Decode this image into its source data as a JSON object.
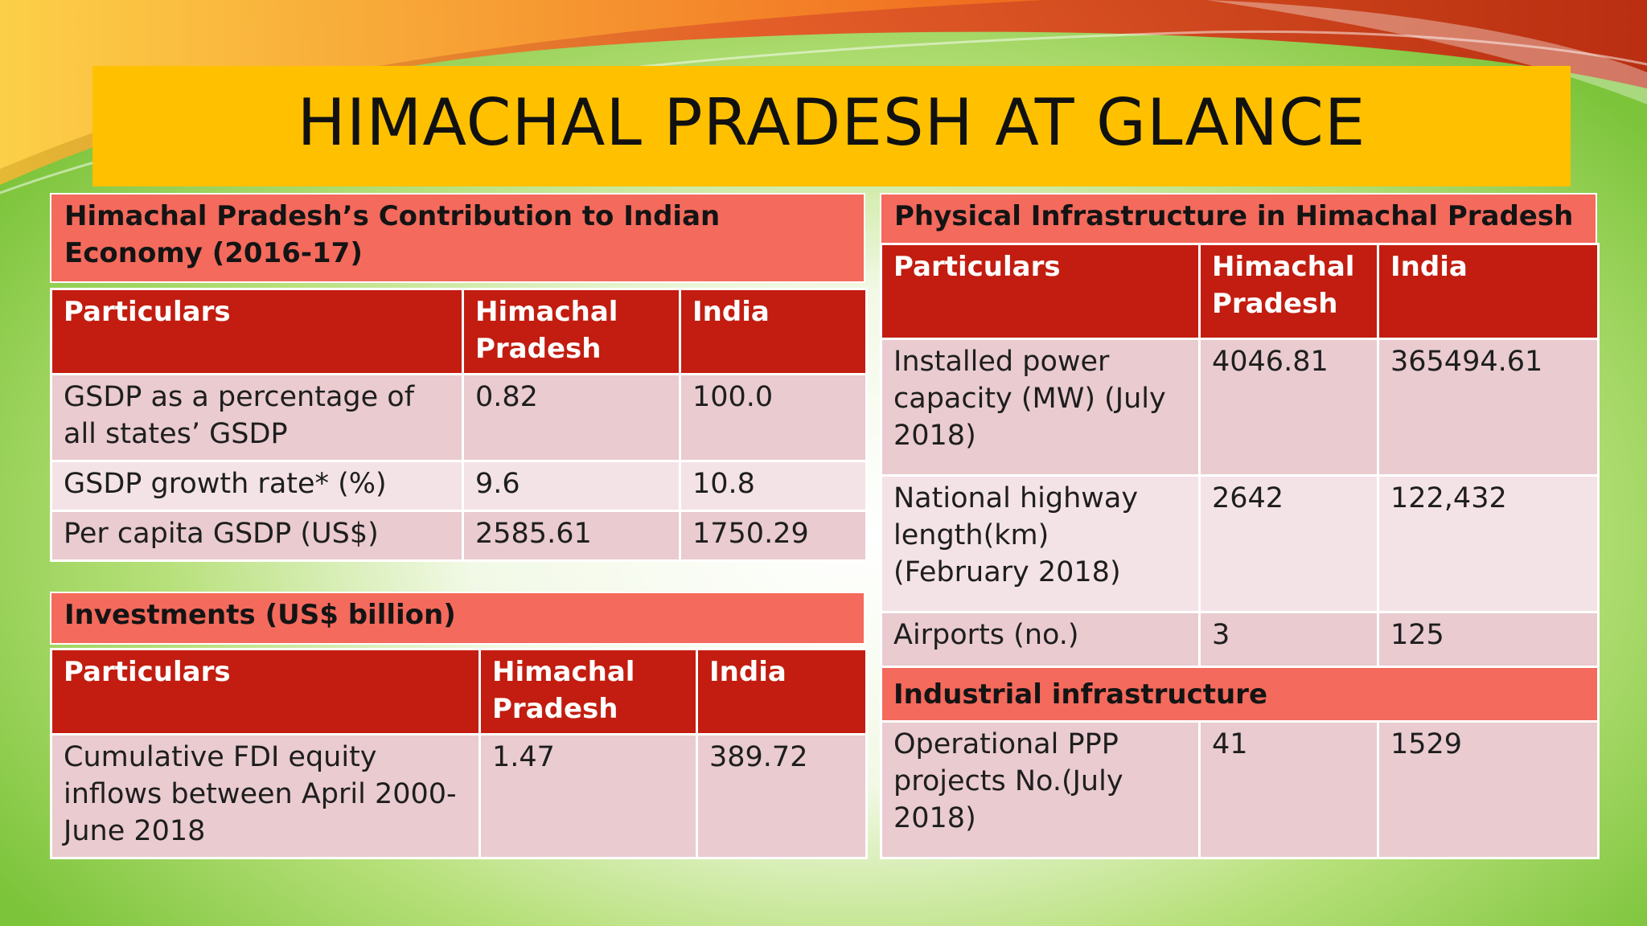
{
  "title": "HIMACHAL PRADESH AT GLANCE",
  "contribution": {
    "heading": "Himachal Pradesh’s Contribution to Indian Economy (2016-17)",
    "headers": [
      "Particulars",
      "Himachal Pradesh",
      "India"
    ],
    "rows": [
      [
        "GSDP as a percentage of all states’ GSDP",
        "0.82",
        "100.0"
      ],
      [
        "GSDP growth rate* (%)",
        "9.6",
        "10.8"
      ],
      [
        "Per capita GSDP (US$)",
        "2585.61",
        "1750.29"
      ]
    ]
  },
  "investments": {
    "heading": "Investments (US$ billion)",
    "headers": [
      "Particulars",
      "Himachal Pradesh",
      "India"
    ],
    "rows": [
      [
        "Cumulative FDI equity inflows between April 2000-June 2018",
        "1.47",
        "389.72"
      ]
    ]
  },
  "infrastructure": {
    "heading": "Physical Infrastructure in Himachal Pradesh",
    "headers": [
      "Particulars",
      "Himachal Pradesh",
      "India"
    ],
    "rows": [
      [
        "Installed power capacity (MW) (July 2018)",
        "4046.81",
        "365494.61"
      ],
      [
        "National highway length(km) (February 2018)",
        "2642",
        "122,432"
      ],
      [
        "Airports (no.)",
        "3",
        "125"
      ]
    ],
    "industrial_heading": "Industrial infrastructure",
    "industrial_rows": [
      [
        "Operational PPP projects No.(July 2018)",
        "41",
        "1529"
      ]
    ]
  },
  "colors": {
    "title_bar": "#ffc000",
    "section_head": "#f46a5c",
    "table_header": "#c21d10",
    "row_dark": "#e9cbd0",
    "row_light": "#f4e3e6"
  }
}
